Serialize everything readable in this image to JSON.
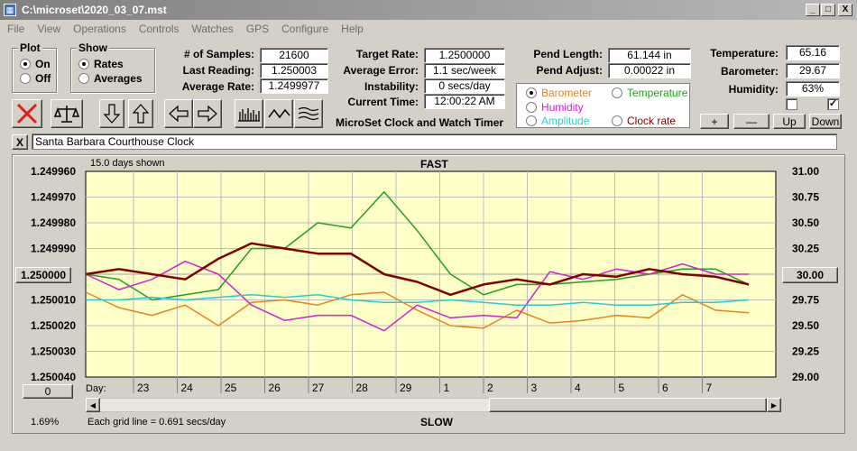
{
  "window": {
    "title": "C:\\microset\\2020_03_07.mst",
    "app_icon": "app-icon",
    "minimize": "_",
    "maximize": "□",
    "close": "X"
  },
  "menu": [
    "File",
    "View",
    "Operations",
    "Controls",
    "Watches",
    "GPS",
    "Configure",
    "Help"
  ],
  "plot_group": {
    "title": "Plot",
    "options": [
      {
        "label": "On",
        "selected": true
      },
      {
        "label": "Off",
        "selected": false
      }
    ]
  },
  "show_group": {
    "title": "Show",
    "options": [
      {
        "label": "Rates",
        "selected": true
      },
      {
        "label": "Averages",
        "selected": false
      }
    ]
  },
  "stats": {
    "samples_label": "# of Samples:",
    "samples": "21600",
    "last_label": "Last Reading:",
    "last": "1.250003",
    "avg_rate_label": "Average Rate:",
    "avg_rate": "1.2499977",
    "target_label": "Target Rate:",
    "target": "1.2500000",
    "avg_error_label": "Average Error:",
    "avg_error": "1.1 sec/week",
    "instability_label": "Instability:",
    "instability": "0 secs/day",
    "time_label": "Current Time:",
    "time": "12:00:22 AM",
    "pend_len_label": "Pend Length:",
    "pend_len": "61.144 in",
    "pend_adj_label": "Pend Adjust:",
    "pend_adj": "0.00022 in",
    "temp_label": "Temperature:",
    "temp": "65.16",
    "baro_label": "Barometer:",
    "baro": "29.67",
    "hum_label": "Humidity:",
    "hum": "63%"
  },
  "app_name": "MicroSet Clock and Watch Timer",
  "plot_select": [
    {
      "label": "Barometer",
      "color": "#e8821e",
      "selected": true
    },
    {
      "label": "Temperature",
      "color": "#20a020",
      "selected": false
    },
    {
      "label": "Humidity",
      "color": "#d020d0",
      "selected": false
    },
    {
      "label": "Amplitude",
      "color": "#20d0d0",
      "selected": false
    },
    {
      "label": "Clock rate",
      "color": "#800000",
      "selected": false
    }
  ],
  "right_buttons": [
    "+",
    "—",
    "Up",
    "Down"
  ],
  "clock_name": "Santa Barbara Courthouse Clock",
  "clear_label": "X",
  "toolbar_icons": [
    "cancel-icon",
    "balance-icon",
    "arrow-down-icon",
    "arrow-up-icon",
    "arrow-left-icon",
    "arrow-right-icon",
    "bars-icon",
    "wave-icon",
    "multiwave-icon"
  ],
  "plot": {
    "days_shown": "15.0 days shown",
    "fast": "FAST",
    "slow": "SLOW",
    "grid_note": "Each grid line = 0.691 secs/day",
    "percent": "1.69%",
    "left_value_button": "1.250000",
    "right_value_button": "30.00",
    "zero_button": "0",
    "day_label": "Day:"
  },
  "chart_data": {
    "type": "line",
    "x_ticks": [
      "23",
      "24",
      "25",
      "26",
      "27",
      "28",
      "29",
      "1",
      "2",
      "3",
      "4",
      "5",
      "6",
      "7"
    ],
    "y_left_ticks": [
      "1.249960",
      "1.249970",
      "1.249980",
      "1.249990",
      "",
      "1.250010",
      "1.250020",
      "1.250030",
      "1.250040"
    ],
    "y_right_ticks": [
      "31.00",
      "30.75",
      "30.50",
      "30.25",
      "",
      "29.75",
      "29.50",
      "29.25",
      "29.00"
    ],
    "y_left_range": [
      1.24996,
      1.25004
    ],
    "y_right_range": [
      29.0,
      31.0
    ],
    "grid": true,
    "series": [
      {
        "name": "Barometer",
        "color": "#e8821e",
        "values": [
          1.250007,
          1.250013,
          1.250016,
          1.250012,
          1.25002,
          1.250011,
          1.25001,
          1.250012,
          1.250008,
          1.250007,
          1.250014,
          1.25002,
          1.250021,
          1.250014,
          1.250019,
          1.250018,
          1.250016,
          1.250017,
          1.250008,
          1.250014,
          1.250015
        ]
      },
      {
        "name": "Temperature",
        "color": "#20a020",
        "values": [
          1.25,
          1.250002,
          1.25001,
          1.250008,
          1.250006,
          1.24999,
          1.24999,
          1.24998,
          1.249982,
          1.249968,
          1.249983,
          1.25,
          1.250008,
          1.250004,
          1.250004,
          1.250003,
          1.250002,
          1.25,
          1.249998,
          1.249998,
          1.250004
        ]
      },
      {
        "name": "Humidity",
        "color": "#d020d0",
        "values": [
          1.25,
          1.250006,
          1.250002,
          1.249995,
          1.25,
          1.250012,
          1.250018,
          1.250016,
          1.250016,
          1.250022,
          1.250012,
          1.250017,
          1.250016,
          1.250017,
          1.249999,
          1.250002,
          1.249998,
          1.25,
          1.249996,
          1.25,
          1.25
        ]
      },
      {
        "name": "Amplitude",
        "color": "#20d0d0",
        "values": [
          1.25001,
          1.25001,
          1.250009,
          1.25001,
          1.250009,
          1.250008,
          1.250009,
          1.250008,
          1.25001,
          1.250011,
          1.250011,
          1.25001,
          1.250011,
          1.250012,
          1.250012,
          1.250011,
          1.250012,
          1.250012,
          1.250011,
          1.250011,
          1.25001
        ]
      },
      {
        "name": "Clock rate",
        "color": "#800000",
        "values": [
          1.25,
          1.249998,
          1.25,
          1.250002,
          1.249994,
          1.249988,
          1.24999,
          1.249992,
          1.249992,
          1.25,
          1.250003,
          1.250008,
          1.250004,
          1.250002,
          1.250004,
          1.25,
          1.250001,
          1.249998,
          1.25,
          1.250001,
          1.250004
        ]
      }
    ]
  }
}
